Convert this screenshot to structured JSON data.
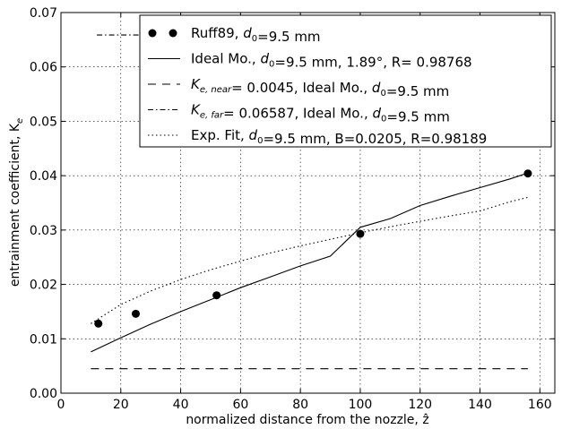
{
  "chart_data": {
    "type": "line",
    "title": "",
    "xlabel": "normalized distance from the nozzle, ẑ",
    "ylabel": "entrainment coefficient, K",
    "ylabel_sub": "e",
    "xlim": [
      0,
      165
    ],
    "ylim": [
      0,
      0.07
    ],
    "xticks": [
      "0",
      "20",
      "40",
      "60",
      "80",
      "100",
      "120",
      "140",
      "160"
    ],
    "yticks": [
      "0.00",
      "0.01",
      "0.02",
      "0.03",
      "0.04",
      "0.05",
      "0.06",
      "0.07"
    ],
    "grid": true,
    "legend_placement": "upper-right",
    "series": [
      {
        "name": "Ruff89, d0=9.5 mm",
        "legend_parts": [
          "Ruff89, ",
          "d",
          "0",
          "=9.5 mm"
        ],
        "style": "markers",
        "color": "#000000",
        "x": [
          12.5,
          25,
          52,
          100,
          156
        ],
        "y": [
          0.0128,
          0.0146,
          0.018,
          0.0293,
          0.0404
        ]
      },
      {
        "name": "Ideal Mo., d0=9.5 mm, 1.89°, R= 0.98768",
        "legend_parts": [
          "Ideal Mo., ",
          "d",
          "0",
          "=9.5 mm, 1.89°, R= 0.98768"
        ],
        "style": "solid",
        "color": "#000000",
        "x": [
          10,
          20,
          30,
          40,
          50,
          60,
          70,
          80,
          90,
          100,
          110,
          120,
          130,
          140,
          150,
          156
        ],
        "y": [
          0.0076,
          0.0102,
          0.0127,
          0.015,
          0.0172,
          0.0194,
          0.0214,
          0.0234,
          0.0252,
          0.0305,
          0.0321,
          0.0345,
          0.0362,
          0.0378,
          0.0394,
          0.0405
        ]
      },
      {
        "name": "Ke,near= 0.0045, Ideal Mo., d0=9.5 mm",
        "legend_parts": [
          "K",
          "e, near",
          "= 0.0045, Ideal Mo., ",
          "d",
          "0",
          "=9.5 mm"
        ],
        "style": "dashed",
        "color": "#000000",
        "x": [
          10,
          156
        ],
        "y": [
          0.0045,
          0.0045
        ]
      },
      {
        "name": "Ke,far= 0.06587, Ideal Mo., d0=9.5 mm",
        "legend_parts": [
          "K",
          "e, far",
          "= 0.06587, Ideal Mo., ",
          "d",
          "0",
          "=9.5 mm"
        ],
        "style": "dashdot",
        "color": "#000000",
        "x": [
          12,
          156
        ],
        "y": [
          0.06587,
          0.06587
        ]
      },
      {
        "name": "Exp. Fit, d0=9.5 mm, B=0.0205, R=0.98189",
        "legend_parts": [
          "Exp. Fit, ",
          "d",
          "0",
          "=9.5 mm, B=0.0205, R=0.98189"
        ],
        "style": "dotted",
        "color": "#000000",
        "x": [
          10,
          20,
          30,
          40,
          50,
          60,
          70,
          80,
          90,
          100,
          110,
          120,
          130,
          140,
          150,
          156
        ],
        "y": [
          0.0128,
          0.0163,
          0.0188,
          0.0209,
          0.0227,
          0.0243,
          0.0258,
          0.0271,
          0.0283,
          0.0295,
          0.0306,
          0.0316,
          0.0326,
          0.0335,
          0.0352,
          0.036
        ]
      }
    ]
  }
}
